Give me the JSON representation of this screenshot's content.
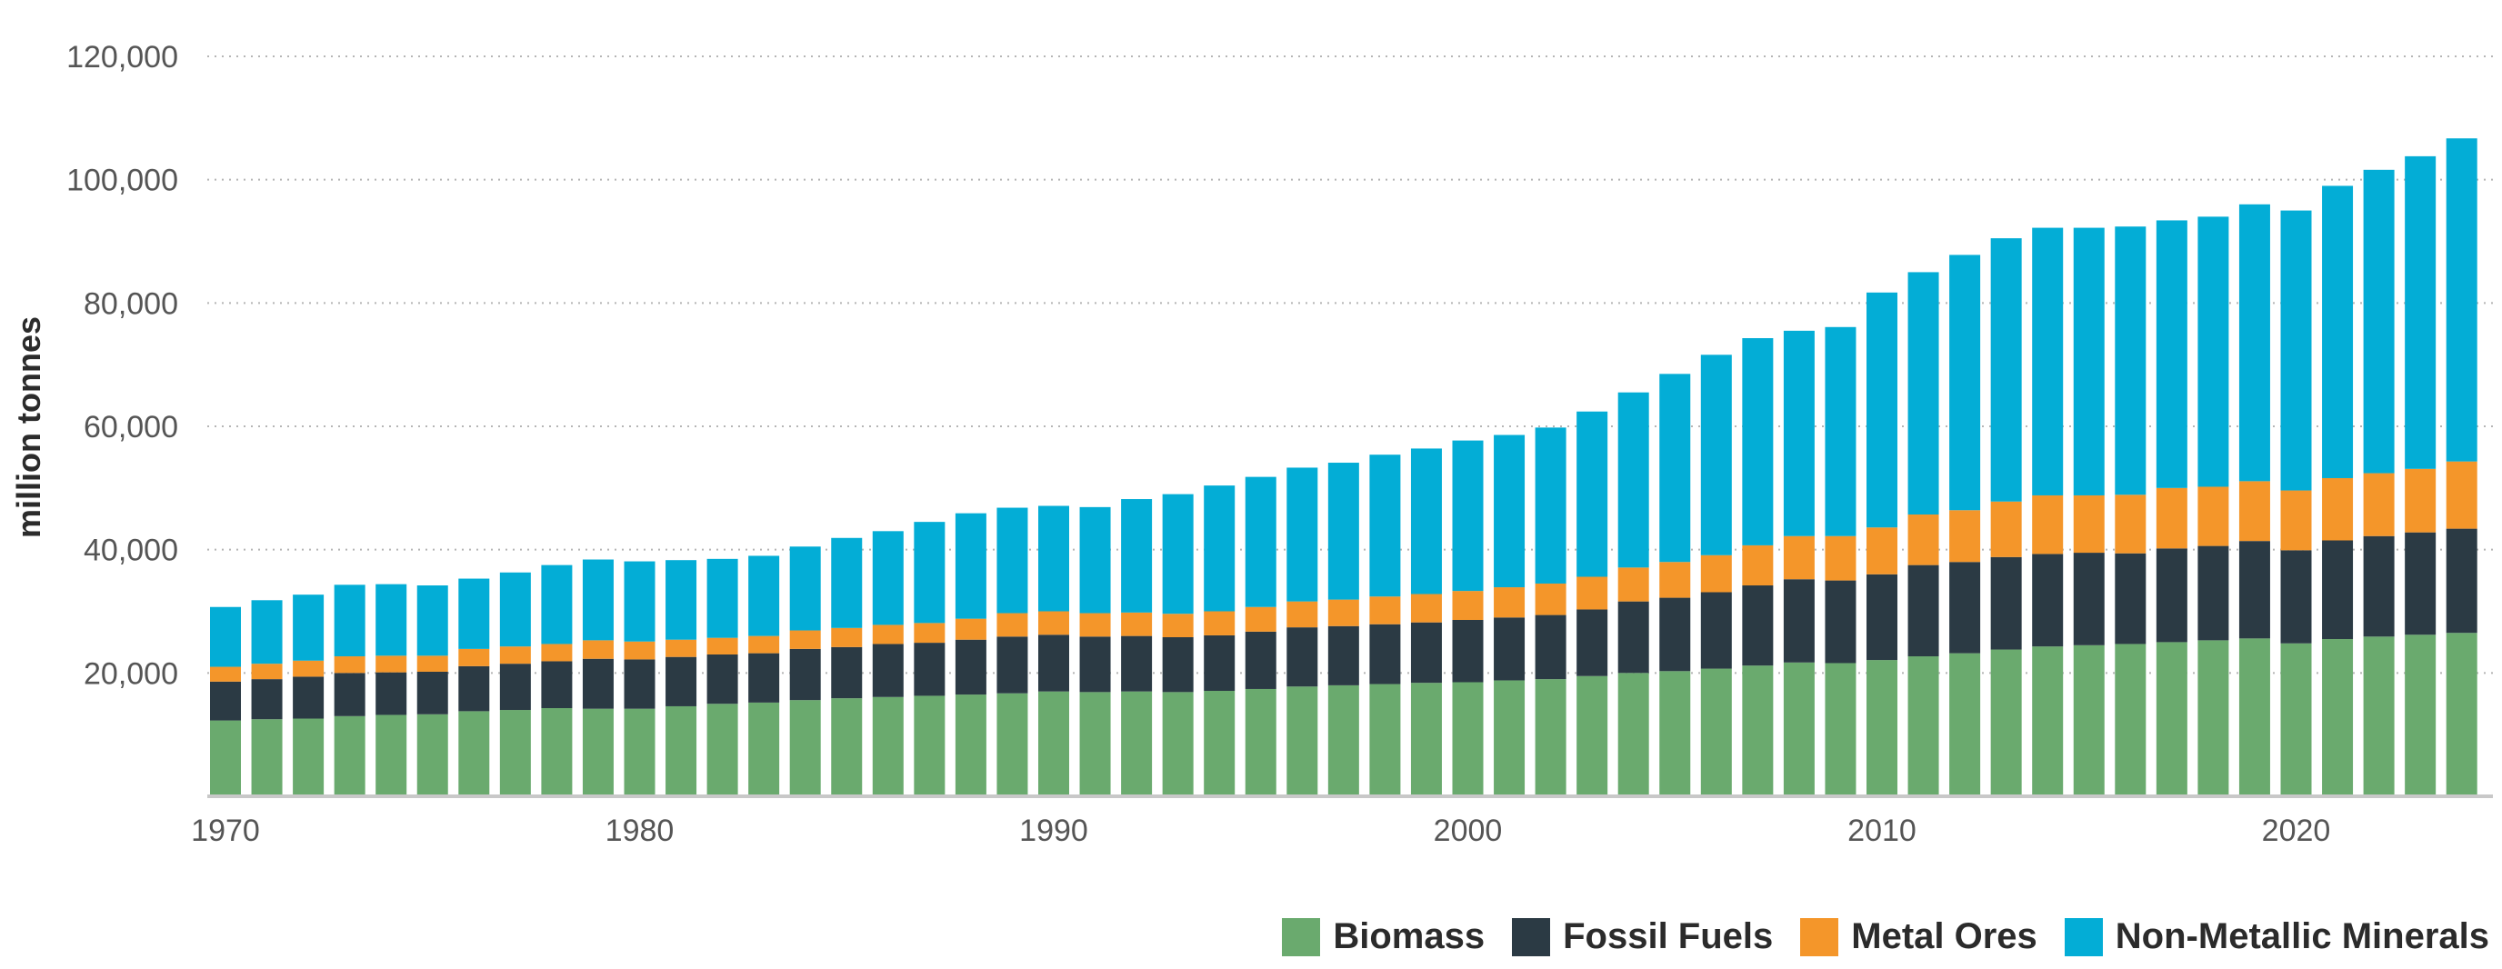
{
  "chart_data": {
    "type": "bar",
    "stacked": true,
    "title": "",
    "xlabel": "",
    "ylabel": "million tonnes",
    "ylim": [
      0,
      120000
    ],
    "yticks": [
      20000,
      40000,
      60000,
      80000,
      100000,
      120000
    ],
    "ytick_labels": [
      "20,000",
      "40,000",
      "60,000",
      "80,000",
      "100,000",
      "120,000"
    ],
    "xtick_labels": [
      "1970",
      "1980",
      "1990",
      "2000",
      "2010",
      "2020"
    ],
    "grid": "horizontal dotted",
    "legend_position": "bottom-right",
    "categories": [
      1970,
      1971,
      1972,
      1973,
      1974,
      1975,
      1976,
      1977,
      1978,
      1979,
      1980,
      1981,
      1982,
      1983,
      1984,
      1985,
      1986,
      1987,
      1988,
      1989,
      1990,
      1991,
      1992,
      1993,
      1994,
      1995,
      1996,
      1997,
      1998,
      1999,
      2000,
      2001,
      2002,
      2003,
      2004,
      2005,
      2006,
      2007,
      2008,
      2009,
      2010,
      2011,
      2012,
      2013,
      2014,
      2015,
      2016,
      2017,
      2018,
      2019,
      2020,
      2021,
      2022,
      2023,
      2024
    ],
    "series": [
      {
        "name": "Biomass",
        "color": "#6aaa6e",
        "values": [
          12300,
          12500,
          12600,
          13000,
          13200,
          13300,
          13800,
          14000,
          14300,
          14200,
          14200,
          14600,
          15000,
          15200,
          15600,
          15900,
          16100,
          16300,
          16500,
          16700,
          17000,
          16900,
          17000,
          16900,
          17100,
          17400,
          17800,
          18000,
          18200,
          18400,
          18500,
          18800,
          19000,
          19500,
          20000,
          20300,
          20700,
          21200,
          21700,
          21600,
          22100,
          22700,
          23200,
          23800,
          24300,
          24500,
          24700,
          25000,
          25300,
          25600,
          24800,
          25500,
          25900,
          26200,
          26500
        ]
      },
      {
        "name": "Fossil Fuels",
        "color": "#2b3a44",
        "values": [
          6300,
          6500,
          6800,
          7000,
          6900,
          6900,
          7300,
          7500,
          7600,
          8100,
          8000,
          8000,
          8000,
          8000,
          8300,
          8300,
          8600,
          8600,
          8900,
          9200,
          9200,
          9000,
          9000,
          8900,
          9000,
          9300,
          9600,
          9600,
          9700,
          9800,
          10100,
          10200,
          10400,
          10800,
          11600,
          11900,
          12400,
          13000,
          13500,
          13400,
          13900,
          14800,
          14800,
          15000,
          15000,
          15000,
          14700,
          15200,
          15300,
          15800,
          15100,
          16000,
          16300,
          16600,
          16900
        ]
      },
      {
        "name": "Metal Ores",
        "color": "#f4962a",
        "values": [
          2400,
          2500,
          2600,
          2700,
          2700,
          2600,
          2800,
          2800,
          2800,
          3000,
          2900,
          2800,
          2700,
          2800,
          3000,
          3100,
          3100,
          3200,
          3400,
          3800,
          3800,
          3800,
          3800,
          3800,
          3900,
          4000,
          4200,
          4300,
          4500,
          4600,
          4700,
          4900,
          5100,
          5300,
          5500,
          5800,
          6000,
          6500,
          7000,
          7200,
          7600,
          8200,
          8400,
          9000,
          9500,
          9300,
          9500,
          9800,
          9600,
          9700,
          9700,
          10100,
          10200,
          10300,
          10900
        ]
      },
      {
        "name": "Non-Metallic Minerals",
        "color": "#03add6",
        "values": [
          9700,
          10300,
          10700,
          11600,
          11600,
          11400,
          11400,
          12000,
          12800,
          13100,
          13000,
          12900,
          12800,
          13000,
          13600,
          14600,
          15200,
          16400,
          17100,
          17100,
          17100,
          17200,
          18400,
          19400,
          20400,
          21100,
          21700,
          22200,
          23000,
          23600,
          24400,
          24700,
          25300,
          26800,
          28400,
          30500,
          32500,
          33600,
          33300,
          33900,
          38100,
          39300,
          41400,
          42700,
          43400,
          43400,
          43500,
          43400,
          43800,
          44900,
          45400,
          47400,
          49200,
          50700,
          52400
        ]
      }
    ]
  }
}
